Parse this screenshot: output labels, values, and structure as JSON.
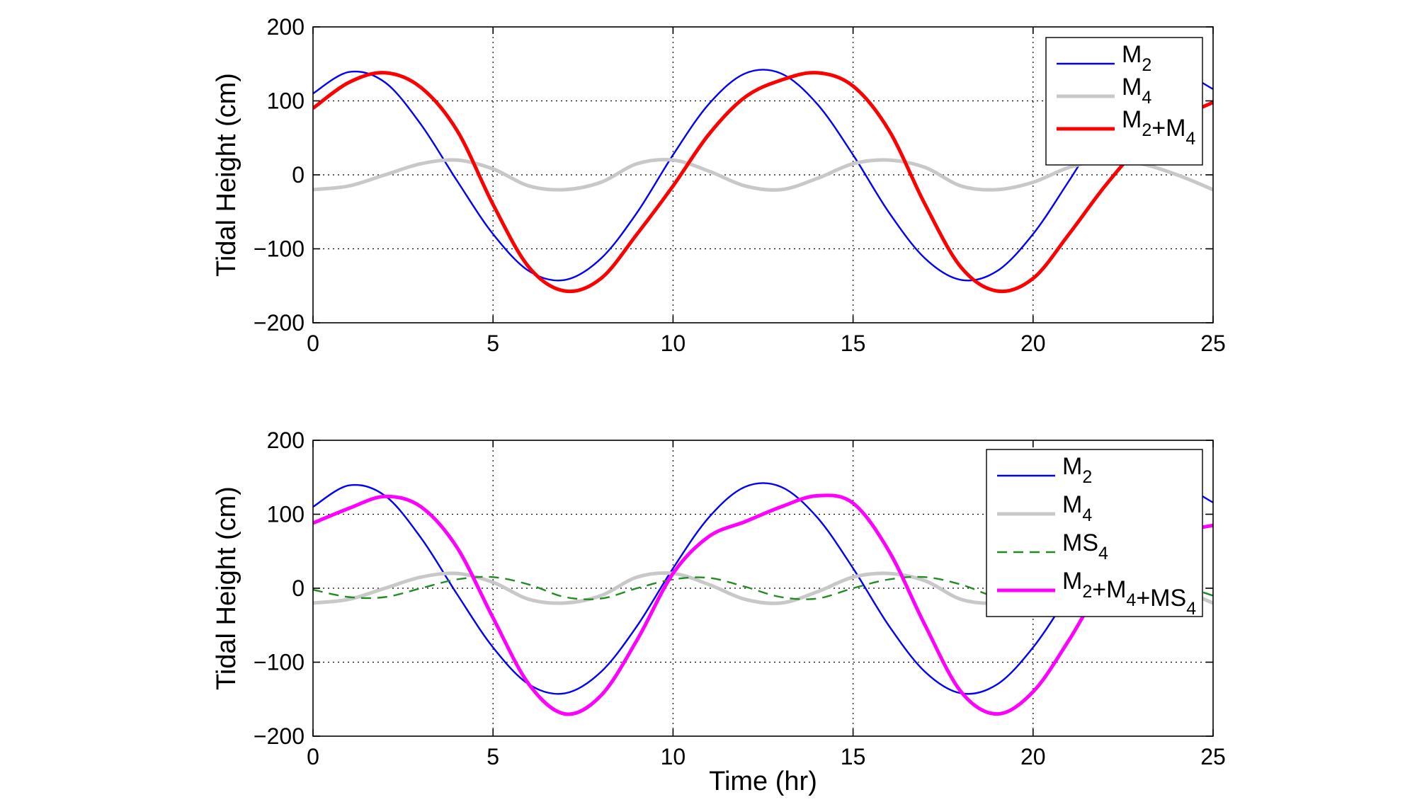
{
  "chart_data": [
    {
      "type": "line",
      "xlabel": "",
      "ylabel": "Tidal Height (cm)",
      "xlim": [
        0,
        25
      ],
      "ylim": [
        -200,
        200
      ],
      "xticks": [
        0,
        5,
        10,
        15,
        20,
        25
      ],
      "yticks": [
        200,
        100,
        0,
        -100,
        -200
      ],
      "xtick_labels": [
        "0",
        "5",
        "10",
        "15",
        "20",
        "25"
      ],
      "ytick_labels": [
        "200",
        "100",
        "0",
        "−100",
        "−200"
      ],
      "grid": true,
      "legend_position": "top-right",
      "x": [
        0,
        1,
        2,
        3,
        4,
        5,
        6,
        7,
        8,
        9,
        10,
        11,
        12,
        13,
        14,
        15,
        16,
        17,
        18,
        19,
        20,
        21,
        22,
        23,
        24,
        25
      ],
      "series": [
        {
          "name": "M2",
          "name_base": "M",
          "name_sub": "2",
          "color": "#0000ff",
          "style": "solid",
          "weight": "thin",
          "values": [
            110,
            139,
            125,
            68,
            -8,
            -80,
            -130,
            -142,
            -113,
            -51,
            27,
            96,
            137,
            137,
            96,
            27,
            -51,
            -113,
            -142,
            -130,
            -80,
            -8,
            68,
            125,
            139,
            116
          ]
        },
        {
          "name": "M4",
          "name_base": "M",
          "name_sub": "4",
          "color": "#c8c8c8",
          "style": "solid",
          "weight": "thick",
          "values": [
            -20,
            -15,
            0,
            15,
            20,
            8,
            -15,
            -20,
            -10,
            15,
            20,
            5,
            -15,
            -20,
            -5,
            15,
            20,
            10,
            -15,
            -20,
            -10,
            10,
            20,
            15,
            0,
            -20
          ]
        },
        {
          "name": "M2+M4",
          "name_parts": [
            {
              "text": "M",
              "sub": "2"
            },
            {
              "text": "+M",
              "sub": "4"
            }
          ],
          "color": "#ff0000",
          "style": "solid",
          "weight": "thick",
          "values": [
            90,
            125,
            138,
            118,
            60,
            -40,
            -125,
            -157,
            -140,
            -80,
            -15,
            55,
            105,
            128,
            138,
            120,
            60,
            -40,
            -125,
            -157,
            -140,
            -80,
            -15,
            40,
            75,
            98
          ]
        }
      ]
    },
    {
      "type": "line",
      "xlabel": "Time (hr)",
      "ylabel": "Tidal Height (cm)",
      "xlim": [
        0,
        25
      ],
      "ylim": [
        -200,
        200
      ],
      "xticks": [
        0,
        5,
        10,
        15,
        20,
        25
      ],
      "yticks": [
        200,
        100,
        0,
        -100,
        -200
      ],
      "xtick_labels": [
        "0",
        "5",
        "10",
        "15",
        "20",
        "25"
      ],
      "ytick_labels": [
        "200",
        "100",
        "0",
        "−100",
        "−200"
      ],
      "grid": true,
      "legend_position": "top-right",
      "x": [
        0,
        1,
        2,
        3,
        4,
        5,
        6,
        7,
        8,
        9,
        10,
        11,
        12,
        13,
        14,
        15,
        16,
        17,
        18,
        19,
        20,
        21,
        22,
        23,
        24,
        25
      ],
      "series": [
        {
          "name": "M2",
          "name_base": "M",
          "name_sub": "2",
          "color": "#0000ff",
          "style": "solid",
          "weight": "thin",
          "values": [
            110,
            139,
            125,
            68,
            -8,
            -80,
            -130,
            -142,
            -113,
            -51,
            27,
            96,
            137,
            137,
            96,
            27,
            -51,
            -113,
            -142,
            -130,
            -80,
            -8,
            68,
            125,
            139,
            116
          ]
        },
        {
          "name": "M4",
          "name_base": "M",
          "name_sub": "4",
          "color": "#c8c8c8",
          "style": "solid",
          "weight": "thick",
          "values": [
            -20,
            -15,
            0,
            15,
            20,
            8,
            -15,
            -20,
            -10,
            15,
            20,
            5,
            -15,
            -20,
            -5,
            15,
            20,
            10,
            -15,
            -20,
            -10,
            10,
            20,
            15,
            0,
            -20
          ]
        },
        {
          "name": "MS4",
          "name_base": "MS",
          "name_sub": "4",
          "color": "#228b22",
          "style": "dashed",
          "weight": "thin",
          "values": [
            -2,
            -12,
            -12,
            0,
            12,
            15,
            5,
            -12,
            -14,
            0,
            12,
            14,
            2,
            -12,
            -14,
            0,
            12,
            15,
            5,
            -12,
            -14,
            -2,
            10,
            14,
            5,
            -10
          ]
        },
        {
          "name": "M2+M4+MS4",
          "name_parts": [
            {
              "text": "M",
              "sub": "2"
            },
            {
              "text": "+M",
              "sub": "4"
            },
            {
              "text": "+MS",
              "sub": "4"
            }
          ],
          "color": "#ff00ff",
          "style": "solid",
          "weight": "thick",
          "values": [
            88,
            108,
            124,
            110,
            55,
            -40,
            -130,
            -170,
            -145,
            -70,
            20,
            70,
            90,
            110,
            125,
            115,
            50,
            -50,
            -140,
            -170,
            -140,
            -70,
            10,
            55,
            75,
            85
          ]
        }
      ]
    }
  ]
}
